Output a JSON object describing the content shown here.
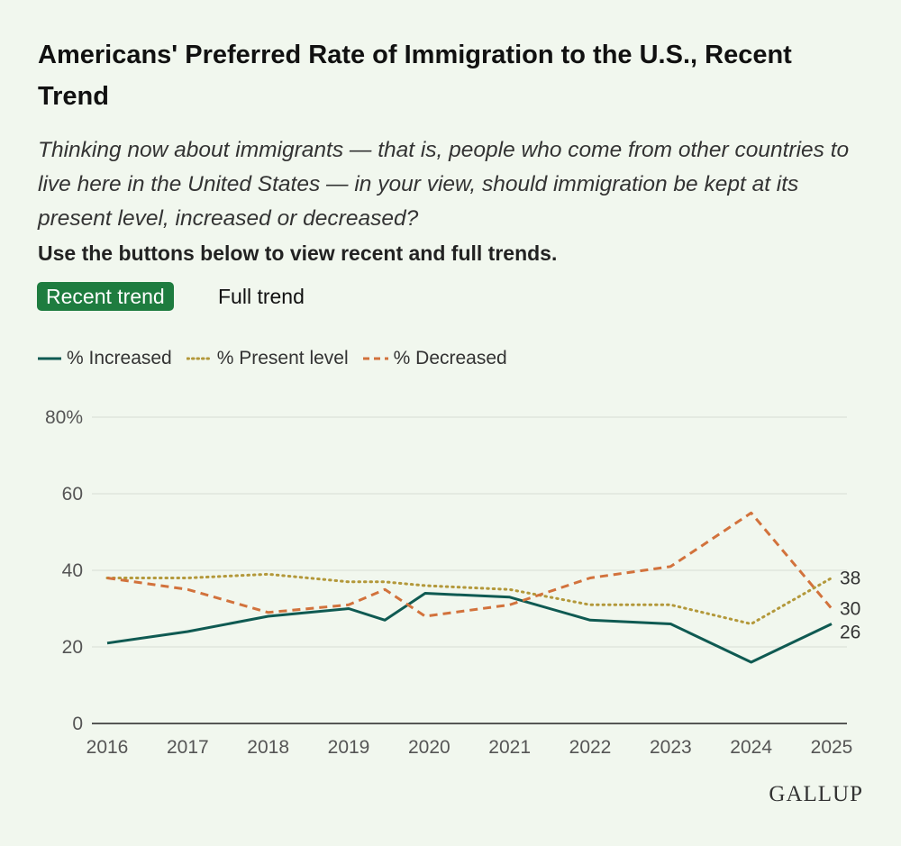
{
  "title": "Americans' Preferred Rate of Immigration to the U.S., Recent Trend",
  "subtitle": "Thinking now about immigrants — that is, people who come from other countries to live here in the United States — in your view, should immigration be kept at its present level, increased or decreased?",
  "instruction": "Use the buttons below to view recent and full trends.",
  "buttons": {
    "recent": "Recent trend",
    "full": "Full trend"
  },
  "logo": "GALLUP",
  "chart_data": {
    "type": "line",
    "title": "Americans' Preferred Rate of Immigration to the U.S., Recent Trend",
    "xlabel": "",
    "ylabel": "",
    "ylim": [
      0,
      80
    ],
    "yticks": [
      "0",
      "20",
      "40",
      "60",
      "80%"
    ],
    "xticks": [
      "2016",
      "2017",
      "2018",
      "2019",
      "2020",
      "2021",
      "2022",
      "2023",
      "2024",
      "2025"
    ],
    "xlim": [
      2016,
      2025
    ],
    "legend_position": "top-left",
    "series": [
      {
        "name": "% Increased",
        "color": "#0f5a52",
        "style": "solid",
        "end_label": "26",
        "points": [
          [
            2016,
            21
          ],
          [
            2017,
            24
          ],
          [
            2018,
            28
          ],
          [
            2019,
            30
          ],
          [
            2019.45,
            27
          ],
          [
            2019.95,
            34
          ],
          [
            2021,
            33
          ],
          [
            2022,
            27
          ],
          [
            2023,
            26
          ],
          [
            2024,
            16
          ],
          [
            2025,
            26
          ]
        ]
      },
      {
        "name": "% Present level",
        "color": "#b3983a",
        "style": "dotted",
        "end_label": "38",
        "points": [
          [
            2016,
            38
          ],
          [
            2017,
            38
          ],
          [
            2018,
            39
          ],
          [
            2019,
            37
          ],
          [
            2019.45,
            37
          ],
          [
            2019.95,
            36
          ],
          [
            2021,
            35
          ],
          [
            2022,
            31
          ],
          [
            2023,
            31
          ],
          [
            2024,
            26
          ],
          [
            2025,
            38
          ]
        ]
      },
      {
        "name": "% Decreased",
        "color": "#d2723c",
        "style": "dashed",
        "end_label": "30",
        "points": [
          [
            2016,
            38
          ],
          [
            2017,
            35
          ],
          [
            2018,
            29
          ],
          [
            2019,
            31
          ],
          [
            2019.45,
            35
          ],
          [
            2019.95,
            28
          ],
          [
            2021,
            31
          ],
          [
            2022,
            38
          ],
          [
            2023,
            41
          ],
          [
            2024,
            55
          ],
          [
            2025,
            30
          ]
        ]
      }
    ]
  }
}
